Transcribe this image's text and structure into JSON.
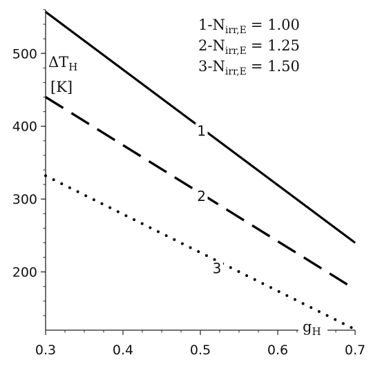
{
  "chart_data": {
    "type": "line",
    "xlabel": {
      "main": "g",
      "sub": "H"
    },
    "ylabel": {
      "main": "ΔT",
      "sub": "H",
      "unit": "[K]"
    },
    "xlim": [
      0.3,
      0.7
    ],
    "ylim": [
      120,
      560
    ],
    "x_ticks": [
      0.3,
      0.4,
      0.5,
      0.6,
      0.7
    ],
    "x_tick_labels": [
      "0.3",
      "0.4",
      "0.5",
      "0.6",
      "0.7"
    ],
    "y_ticks": [
      200,
      300,
      400,
      500
    ],
    "y_tick_labels": [
      "200",
      "300",
      "400",
      "500"
    ],
    "grid": false,
    "legend_position": "top-right",
    "legend": [
      {
        "prefix": "1-N",
        "sub": "irr,E",
        "value": "= 1.00"
      },
      {
        "prefix": "2-N",
        "sub": "irr,E",
        "value": "= 1.25"
      },
      {
        "prefix": "3-N",
        "sub": "irr,E",
        "value": "= 1.50"
      }
    ],
    "series": [
      {
        "label": "1",
        "style": "solid",
        "x": [
          0.3,
          0.7
        ],
        "y": [
          557,
          240
        ]
      },
      {
        "label": "2",
        "style": "dashed",
        "x": [
          0.3,
          0.7
        ],
        "y": [
          440,
          176
        ]
      },
      {
        "label": "3",
        "style": "dotted",
        "x": [
          0.3,
          0.7
        ],
        "y": [
          332,
          121
        ]
      }
    ],
    "curve_label_x": [
      0.505,
      0.505,
      0.525
    ]
  }
}
